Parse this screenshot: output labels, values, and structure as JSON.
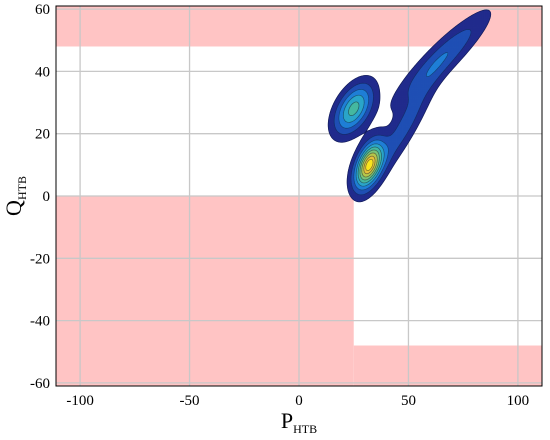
{
  "chart_data": {
    "type": "contour",
    "xlabel": {
      "main": "P",
      "sub": "HTB"
    },
    "ylabel": {
      "main": "Q",
      "sub": "HTB"
    },
    "xlim": [
      -111,
      111
    ],
    "ylim": [
      -61,
      61
    ],
    "xticks": [
      -100,
      -50,
      0,
      50,
      100
    ],
    "yticks": [
      -60,
      -40,
      -20,
      0,
      20,
      40,
      60
    ],
    "grid": true,
    "colors": {
      "forbidden_region": "#ffc4c4",
      "grid": "#c8c8c8",
      "contour_levels": [
        "#212b8c",
        "#1f4fb4",
        "#1f7fd6",
        "#2aa5c9",
        "#45b8a0",
        "#78c47a",
        "#b5c64b",
        "#e6c13a",
        "#fbe51d"
      ]
    },
    "forbidden_regions": [
      {
        "name": "upper band",
        "x": [
          -111,
          111
        ],
        "y": [
          48,
          61
        ]
      },
      {
        "name": "lower-left block",
        "x": [
          -111,
          25
        ],
        "y": [
          -61,
          0
        ]
      },
      {
        "name": "lower-right band",
        "x": [
          25,
          111
        ],
        "y": [
          -61,
          -48
        ]
      }
    ],
    "density_components": [
      {
        "name": "lower peak",
        "center": [
          32,
          10
        ],
        "sx": 5.5,
        "sy": 3.2,
        "angle_deg": 52,
        "weight": 1.0
      },
      {
        "name": "upper peak",
        "center": [
          25,
          28
        ],
        "sx": 6.5,
        "sy": 3.8,
        "angle_deg": 40,
        "weight": 0.55
      },
      {
        "name": "upper ridge",
        "center": [
          65,
          44
        ],
        "sx": 16,
        "sy": 3.2,
        "angle_deg": 34,
        "weight": 0.25
      },
      {
        "name": "lower ridge",
        "center": [
          48,
          22
        ],
        "sx": 14,
        "sy": 3.0,
        "angle_deg": 50,
        "weight": 0.2
      }
    ]
  }
}
